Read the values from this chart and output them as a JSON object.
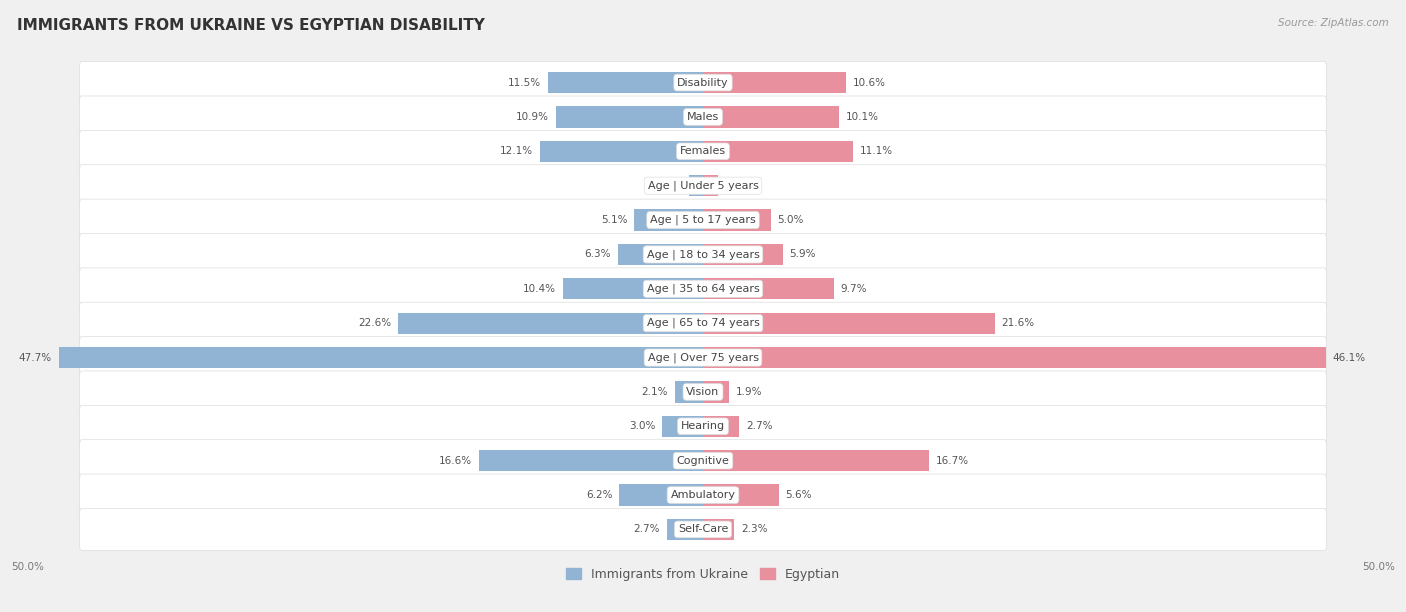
{
  "title": "IMMIGRANTS FROM UKRAINE VS EGYPTIAN DISABILITY",
  "source": "Source: ZipAtlas.com",
  "categories": [
    "Disability",
    "Males",
    "Females",
    "Age | Under 5 years",
    "Age | 5 to 17 years",
    "Age | 18 to 34 years",
    "Age | 35 to 64 years",
    "Age | 65 to 74 years",
    "Age | Over 75 years",
    "Vision",
    "Hearing",
    "Cognitive",
    "Ambulatory",
    "Self-Care"
  ],
  "ukraine_values": [
    11.5,
    10.9,
    12.1,
    1.0,
    5.1,
    6.3,
    10.4,
    22.6,
    47.7,
    2.1,
    3.0,
    16.6,
    6.2,
    2.7
  ],
  "egypt_values": [
    10.6,
    10.1,
    11.1,
    1.1,
    5.0,
    5.9,
    9.7,
    21.6,
    46.1,
    1.9,
    2.7,
    16.7,
    5.6,
    2.3
  ],
  "ukraine_color": "#92b4d4",
  "egypt_color": "#e8909e",
  "ukraine_label": "Immigrants from Ukraine",
  "egypt_label": "Egyptian",
  "max_val": 50.0,
  "background_color": "#f0f0f0",
  "bar_bg_color": "#ffffff",
  "title_fontsize": 11,
  "label_fontsize": 8,
  "value_fontsize": 7.5,
  "legend_fontsize": 9
}
